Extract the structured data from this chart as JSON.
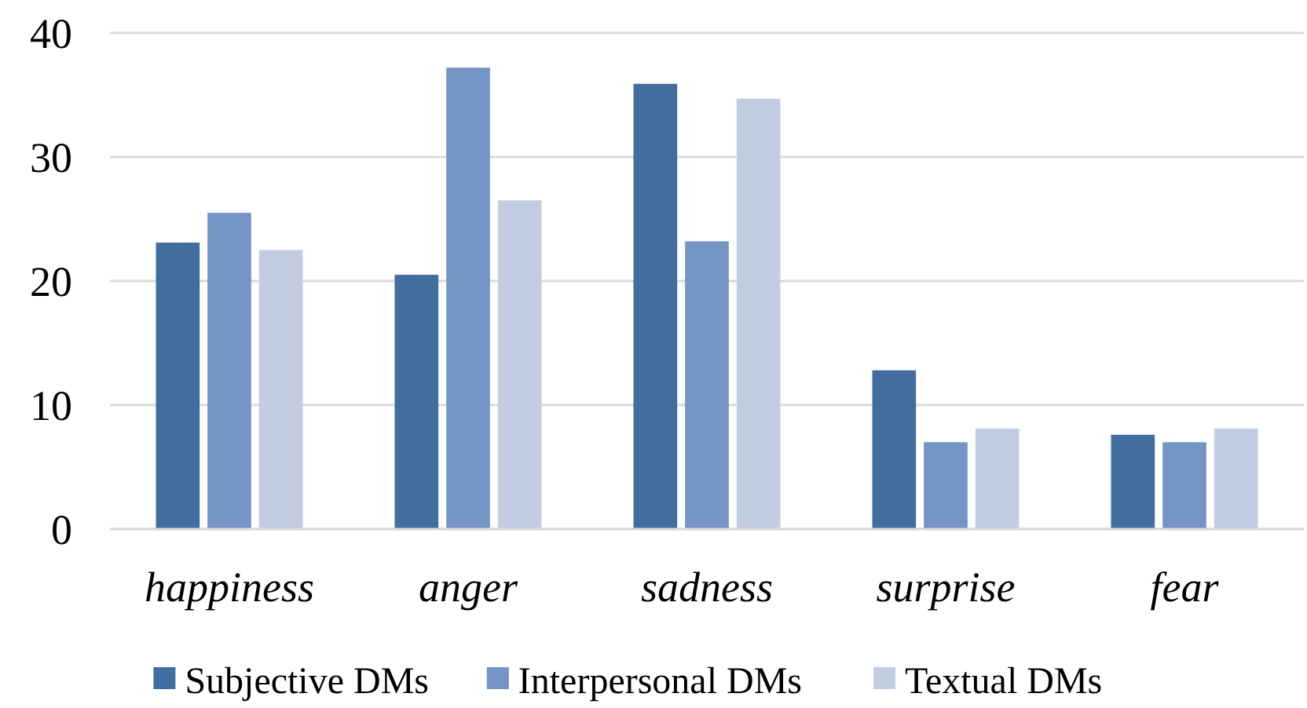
{
  "chart_data": {
    "type": "bar",
    "categories": [
      "happiness",
      "anger",
      "sadness",
      "surprise",
      "fear"
    ],
    "series": [
      {
        "name": "Subjective DMs",
        "color": "#426d9f",
        "values": [
          23.1,
          20.5,
          35.9,
          12.8,
          7.6
        ]
      },
      {
        "name": "Interpersonal DMs",
        "color": "#7494c6",
        "values": [
          25.5,
          37.2,
          23.2,
          7.0,
          7.0
        ]
      },
      {
        "name": "Textual DMs",
        "color": "#c3cde2",
        "values": [
          22.5,
          26.5,
          34.7,
          8.1,
          8.1
        ]
      }
    ],
    "ylim": [
      0,
      40
    ],
    "yticks": [
      0,
      10,
      20,
      30,
      40
    ],
    "grid": "y",
    "legend": "bottom"
  }
}
